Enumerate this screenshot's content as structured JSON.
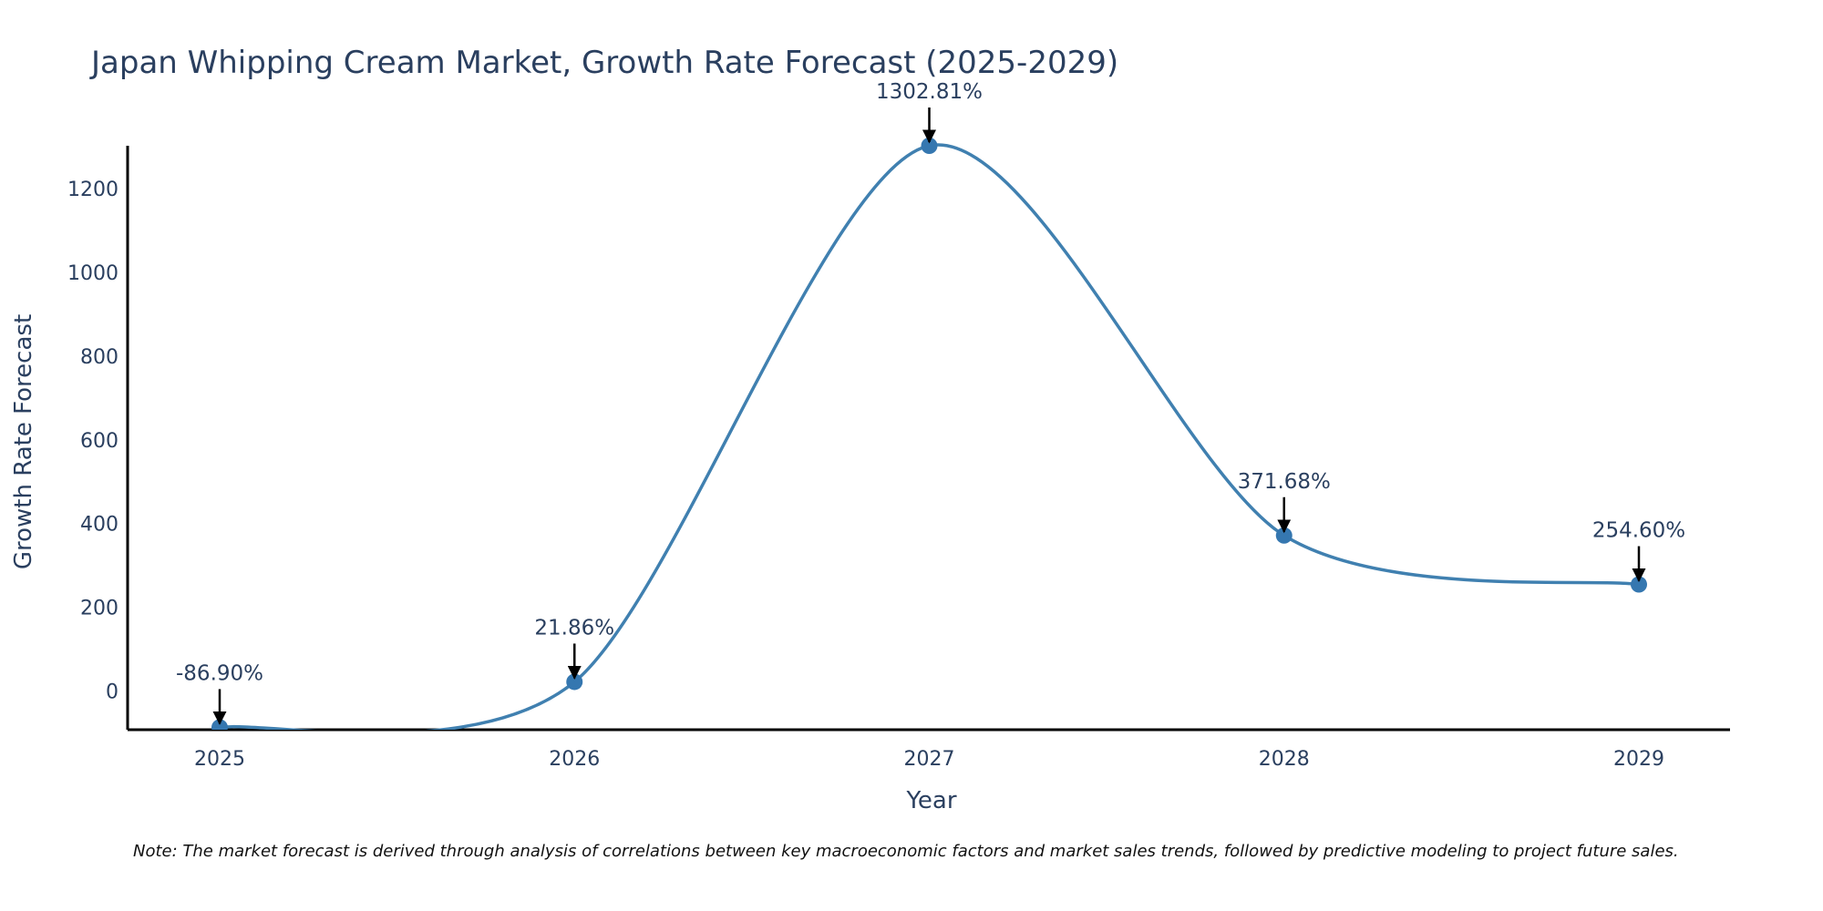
{
  "chart_data": {
    "type": "line",
    "title": "Japan Whipping Cream Market, Growth Rate Forecast (2025-2029)",
    "xlabel": "Year",
    "ylabel": "Growth Rate Forecast",
    "categories": [
      "2025",
      "2026",
      "2027",
      "2028",
      "2029"
    ],
    "series": [
      {
        "name": "Growth Rate Forecast",
        "values": [
          -86.9,
          21.86,
          1302.81,
          371.68,
          254.6
        ],
        "labels": [
          "-86.90%",
          "21.86%",
          "1302.81%",
          "371.68%",
          "254.60%"
        ]
      }
    ],
    "yticks": [
      0,
      200,
      400,
      600,
      800,
      1000,
      1200
    ],
    "ytick_labels": [
      "0",
      "200",
      "400",
      "600",
      "800",
      "1000",
      "1200"
    ],
    "xtick_labels": [
      "2025",
      "2026",
      "2027",
      "2028",
      "2029"
    ],
    "ylim": [
      -92.5,
      1302.81
    ],
    "grid": false,
    "line_shape": "spline",
    "line_color": "#4080b0",
    "marker_color": "#3577b0",
    "note": "Note: The market forecast is derived through analysis of correlations between key macroeconomic factors and market sales trends, followed by predictive modeling to project future sales."
  }
}
